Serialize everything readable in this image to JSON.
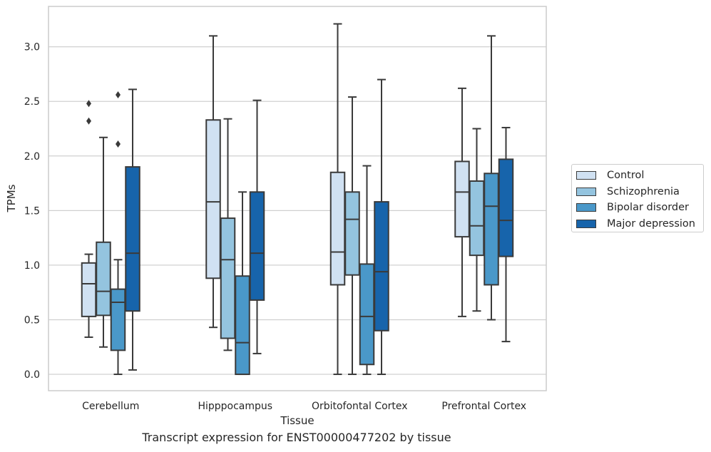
{
  "chart_data": {
    "type": "box",
    "title": "",
    "xlabel": "Tissue",
    "ylabel": "TPMs",
    "caption": "Transcript expression for ENST00000477202 by tissue",
    "categories": [
      "Cerebellum",
      "Hipppocampus",
      "Orbitofontal Cortex",
      "Prefrontal Cortex"
    ],
    "ylim": [
      -0.15,
      3.37
    ],
    "yticks": [
      "0.0",
      "0.5",
      "1.0",
      "1.5",
      "2.0",
      "2.5",
      "3.0"
    ],
    "grid": true,
    "legend_position": "right",
    "series": [
      {
        "name": "Control",
        "color": "#d0e1f2",
        "boxes": [
          {
            "min": 0.34,
            "q1": 0.53,
            "median": 0.83,
            "q3": 1.02,
            "max": 1.1,
            "outliers": [
              2.32,
              2.48
            ]
          },
          {
            "min": 0.43,
            "q1": 0.88,
            "median": 1.58,
            "q3": 2.33,
            "max": 3.1,
            "outliers": []
          },
          {
            "min": 0.0,
            "q1": 0.82,
            "median": 1.12,
            "q3": 1.85,
            "max": 3.21,
            "outliers": []
          },
          {
            "min": 0.53,
            "q1": 1.26,
            "median": 1.67,
            "q3": 1.95,
            "max": 2.62,
            "outliers": []
          }
        ]
      },
      {
        "name": "Schizophrenia",
        "color": "#94c4df",
        "boxes": [
          {
            "min": 0.25,
            "q1": 0.54,
            "median": 0.76,
            "q3": 1.21,
            "max": 2.17,
            "outliers": []
          },
          {
            "min": 0.22,
            "q1": 0.33,
            "median": 1.05,
            "q3": 1.43,
            "max": 2.34,
            "outliers": []
          },
          {
            "min": 0.0,
            "q1": 0.91,
            "median": 1.42,
            "q3": 1.67,
            "max": 2.54,
            "outliers": []
          },
          {
            "min": 0.58,
            "q1": 1.09,
            "median": 1.36,
            "q3": 1.77,
            "max": 2.25,
            "outliers": []
          }
        ]
      },
      {
        "name": "Bipolar disorder",
        "color": "#4a98c9",
        "boxes": [
          {
            "min": 0.0,
            "q1": 0.22,
            "median": 0.66,
            "q3": 0.78,
            "max": 1.05,
            "outliers": [
              2.11,
              2.56
            ]
          },
          {
            "min": 0.0,
            "q1": 0.0,
            "median": 0.29,
            "q3": 0.9,
            "max": 1.67,
            "outliers": []
          },
          {
            "min": 0.0,
            "q1": 0.09,
            "median": 0.53,
            "q3": 1.01,
            "max": 1.91,
            "outliers": []
          },
          {
            "min": 0.5,
            "q1": 0.82,
            "median": 1.54,
            "q3": 1.84,
            "max": 3.1,
            "outliers": []
          }
        ]
      },
      {
        "name": "Major depression",
        "color": "#1764ab",
        "boxes": [
          {
            "min": 0.04,
            "q1": 0.58,
            "median": 1.11,
            "q3": 1.9,
            "max": 2.61,
            "outliers": []
          },
          {
            "min": 0.19,
            "q1": 0.68,
            "median": 1.11,
            "q3": 1.67,
            "max": 2.51,
            "outliers": []
          },
          {
            "min": 0.0,
            "q1": 0.4,
            "median": 0.94,
            "q3": 1.58,
            "max": 2.7,
            "outliers": []
          },
          {
            "min": 0.3,
            "q1": 1.08,
            "median": 1.41,
            "q3": 1.97,
            "max": 2.26,
            "outliers": []
          }
        ]
      }
    ]
  }
}
